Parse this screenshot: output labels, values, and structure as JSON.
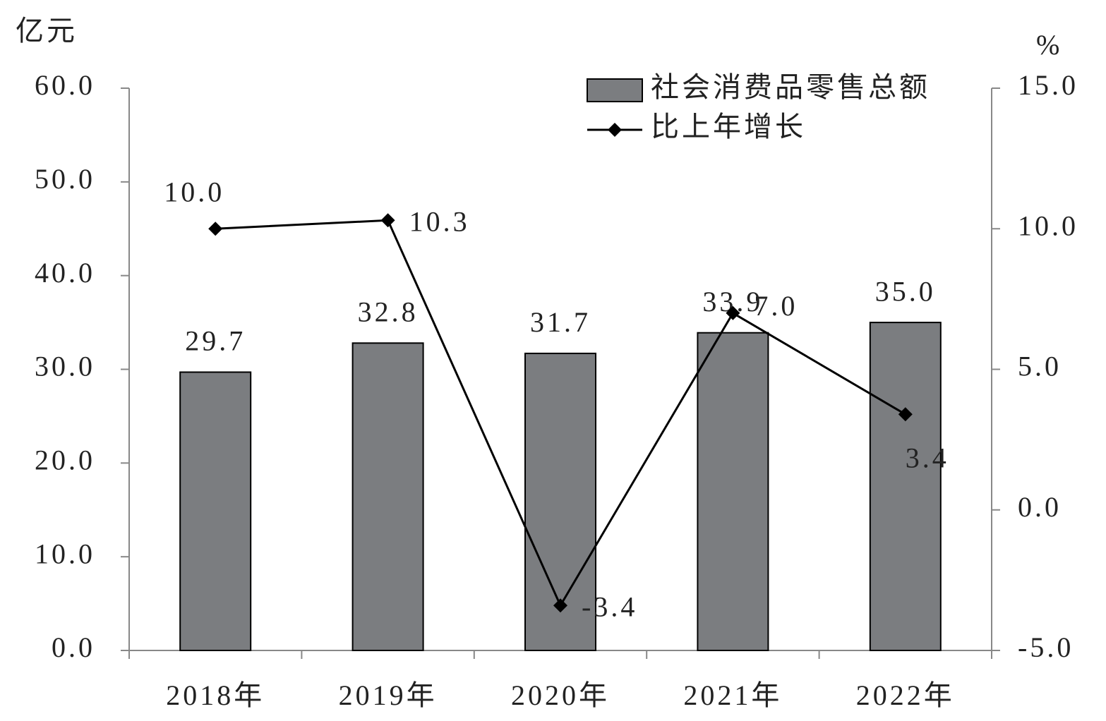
{
  "chart_data": {
    "type": "bar",
    "y_unit": "亿元",
    "y2_unit": "%",
    "categories": [
      "2018年",
      "2019年",
      "2020年",
      "2021年",
      "2022年"
    ],
    "series": [
      {
        "name": "社会消费品零售总额",
        "type": "bar",
        "color": "#7b7d80",
        "values": [
          29.7,
          32.8,
          31.7,
          33.9,
          35.0
        ],
        "value_labels": [
          "29.7",
          "32.8",
          "31.7",
          "33.9",
          "35.0"
        ]
      },
      {
        "name": "比上年增长",
        "type": "line",
        "axis": "y2",
        "color": "#000000",
        "values": [
          10.0,
          10.3,
          -3.4,
          7.0,
          3.4
        ],
        "value_labels": [
          "10.0",
          "10.3",
          "-3.4",
          "7.0",
          "3.4"
        ]
      }
    ],
    "ylim": [
      0,
      60
    ],
    "yticks": [
      {
        "value": 0,
        "label": "0.0"
      },
      {
        "value": 10,
        "label": "10.0"
      },
      {
        "value": 20,
        "label": "20.0"
      },
      {
        "value": 30,
        "label": "30.0"
      },
      {
        "value": 40,
        "label": "40.0"
      },
      {
        "value": 50,
        "label": "50.0"
      },
      {
        "value": 60,
        "label": "60.0"
      }
    ],
    "y2lim": [
      -5,
      15
    ],
    "y2ticks": [
      {
        "value": -5,
        "label": "-5.0"
      },
      {
        "value": 0,
        "label": "0.0"
      },
      {
        "value": 5,
        "label": "5.0"
      },
      {
        "value": 10,
        "label": "10.0"
      },
      {
        "value": 15,
        "label": "15.0"
      }
    ],
    "legend": "top-right"
  }
}
